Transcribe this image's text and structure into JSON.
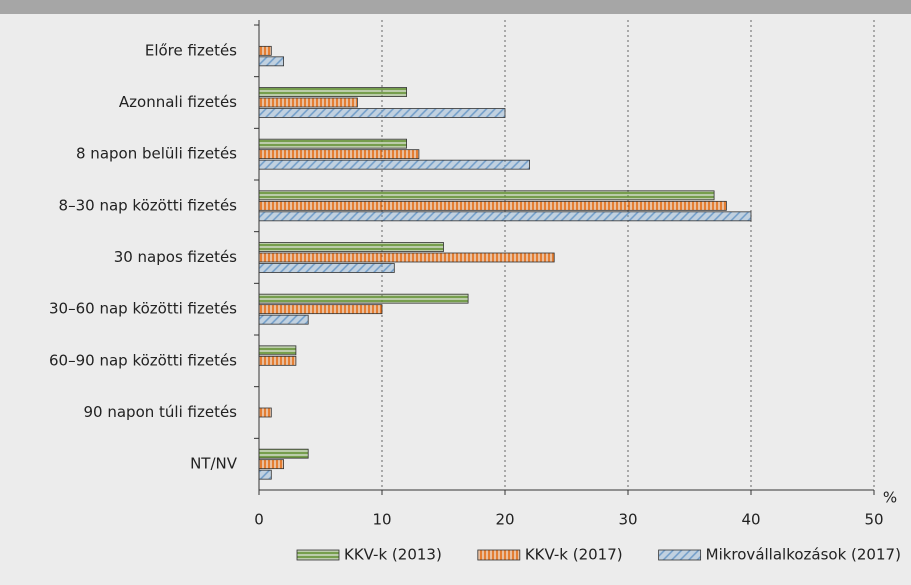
{
  "chart_data": {
    "type": "hbar",
    "categories": [
      "Előre fizetés",
      "Azonnali fizetés",
      "8 napon belüli fizetés",
      "8–30 nap közötti fizetés",
      "30 napos fizetés",
      "30–60 nap közötti fizetés",
      "60–90 nap közötti fizetés",
      "90 napon túli fizetés",
      "NT/NV"
    ],
    "series": [
      {
        "name": "KKV-k (2013)",
        "color": "#5e8f2e",
        "pattern": "horizontal",
        "values": [
          0,
          12,
          12,
          37,
          15,
          17,
          3,
          0,
          4
        ]
      },
      {
        "name": "KKV-k (2017)",
        "color": "#e3690f",
        "pattern": "vertical",
        "values": [
          1,
          8,
          13,
          38,
          24,
          10,
          3,
          1,
          2
        ]
      },
      {
        "name": "Mikrovállalkozások (2017)",
        "color": "#6f9cc8",
        "pattern": "diagonal",
        "values": [
          2,
          20,
          22,
          40,
          11,
          4,
          0,
          0,
          1
        ]
      }
    ],
    "x_label": "%",
    "xlim": [
      0,
      50
    ],
    "xticks": [
      0,
      10,
      20,
      30,
      40,
      50
    ],
    "grid": true,
    "legend": "bottom"
  }
}
